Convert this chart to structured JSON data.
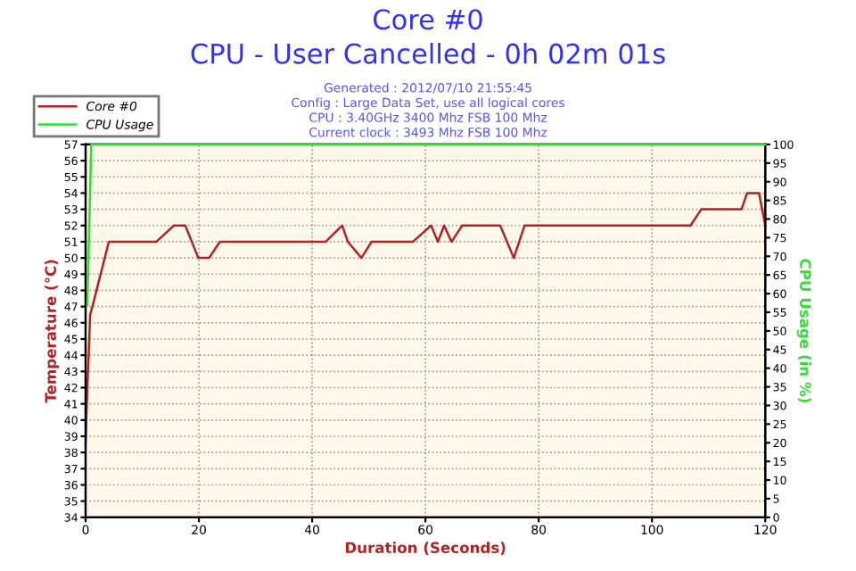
{
  "chart_data": {
    "type": "line",
    "title": "Core #0",
    "subtitle": "CPU - User Cancelled - 0h 02m 01s",
    "annotations": [
      "Generated : 2012/07/10 21:55:45",
      "Config : Large Data Set, use all logical cores",
      "CPU : 3.40GHz 3400 Mhz FSB 100 Mhz",
      "Current clock : 3493 Mhz FSB 100 Mhz"
    ],
    "xlabel": "Duration (Seconds)",
    "ylabel": "Temperature (°C)",
    "y2label": "CPU Usage (in %)",
    "series": [
      {
        "name": "Core #0",
        "color": "#b22222",
        "x": [
          0,
          0.3,
          0.6,
          0.8,
          1.2,
          4.1,
          12.5,
          15.6,
          17.6,
          19.9,
          21.8,
          23.7,
          42.4,
          45.3,
          46.3,
          48.7,
          50.5,
          57.8,
          61,
          62.2,
          63.3,
          64.6,
          66.5,
          73.2,
          75.6,
          77.5,
          106.8,
          108.7,
          115.8,
          116.8,
          118.9,
          120
        ],
        "values": [
          38.5,
          42,
          44.5,
          46.5,
          47,
          51,
          51,
          52,
          52,
          50,
          50,
          51,
          51,
          52,
          51,
          50,
          51,
          51,
          52,
          51,
          52,
          51,
          52,
          52,
          50,
          52,
          52,
          53,
          53,
          54,
          54,
          52
        ]
      },
      {
        "name": "CPU Usage",
        "color": "#33dd33",
        "axis": "y2",
        "x": [
          0.3,
          1,
          120
        ],
        "values": [
          57,
          100,
          100
        ]
      }
    ],
    "xlim": [
      0,
      120
    ],
    "xticks": [
      0,
      20,
      40,
      60,
      80,
      100,
      120
    ],
    "ylim": [
      34,
      57
    ],
    "yticks": [
      34,
      35,
      36,
      37,
      38,
      39,
      40,
      41,
      42,
      43,
      44,
      45,
      46,
      47,
      48,
      49,
      50,
      51,
      52,
      53,
      54,
      55,
      56,
      57
    ],
    "y2lim": [
      0,
      100
    ],
    "y2ticks": [
      0,
      5,
      10,
      15,
      20,
      25,
      30,
      35,
      40,
      45,
      50,
      55,
      60,
      65,
      70,
      75,
      80,
      85,
      90,
      95,
      100
    ],
    "grid": true,
    "legend": "top left",
    "line_style": "solid",
    "marker": "none"
  }
}
